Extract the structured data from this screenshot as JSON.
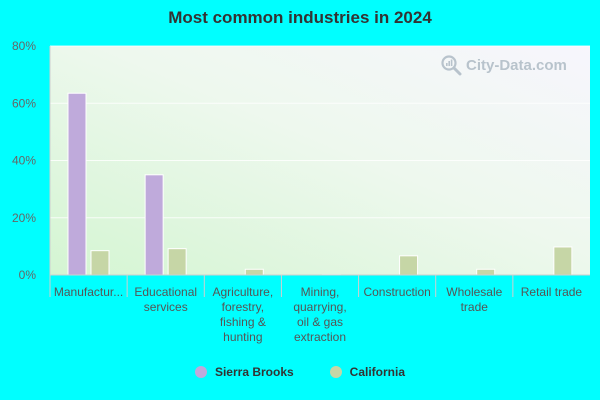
{
  "chart_data": {
    "type": "bar",
    "title": "Most common industries in 2024",
    "categories": [
      "Manufactur...",
      "Educational services",
      "Agriculture, forestry, fishing & hunting",
      "Mining, quarrying, oil & gas extraction",
      "Construction",
      "Wholesale trade",
      "Retail trade"
    ],
    "category_lines": [
      [
        "Manufactur..."
      ],
      [
        "Educational",
        "services"
      ],
      [
        "Agriculture,",
        "forestry,",
        "fishing &",
        "hunting"
      ],
      [
        "Mining,",
        "quarrying,",
        "oil & gas",
        "extraction"
      ],
      [
        "Construction"
      ],
      [
        "Wholesale",
        "trade"
      ],
      [
        "Retail trade"
      ]
    ],
    "series": [
      {
        "name": "Sierra Brooks",
        "color": "#bfaadb",
        "values": [
          63.5,
          35.0,
          0,
          0,
          0,
          0,
          0
        ]
      },
      {
        "name": "California",
        "color": "#c6d6a6",
        "values": [
          8.5,
          9.2,
          2.0,
          0.1,
          6.7,
          2.0,
          9.8
        ]
      }
    ],
    "yticks": [
      "0%",
      "20%",
      "40%",
      "60%",
      "80%"
    ],
    "ylim": [
      0,
      80
    ],
    "xlabel": "",
    "ylabel": "",
    "legend_position": "bottom",
    "grid": true
  },
  "watermark": {
    "text": "City-Data.com",
    "icon": "magnifier-icon"
  }
}
